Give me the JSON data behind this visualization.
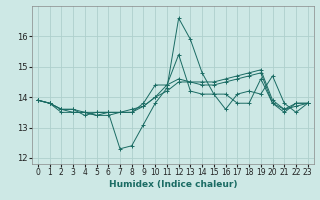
{
  "xlabel": "Humidex (Indice chaleur)",
  "ylabel": "",
  "bg_color": "#cde8e5",
  "grid_color": "#aed0cc",
  "line_color": "#1a6b63",
  "xlim": [
    -0.5,
    23.5
  ],
  "ylim": [
    11.8,
    17.0
  ],
  "yticks": [
    12,
    13,
    14,
    15,
    16
  ],
  "xticks": [
    0,
    1,
    2,
    3,
    4,
    5,
    6,
    7,
    8,
    9,
    10,
    11,
    12,
    13,
    14,
    15,
    16,
    17,
    18,
    19,
    20,
    21,
    22,
    23
  ],
  "series": [
    [
      13.9,
      13.8,
      13.6,
      13.6,
      13.5,
      13.5,
      13.5,
      12.3,
      12.4,
      13.1,
      13.8,
      14.3,
      16.6,
      15.9,
      14.8,
      14.1,
      14.1,
      13.8,
      13.8,
      14.6,
      13.8,
      13.5,
      13.8,
      13.8
    ],
    [
      13.9,
      13.8,
      13.6,
      13.6,
      13.4,
      13.5,
      13.5,
      13.5,
      13.6,
      13.7,
      14.0,
      14.4,
      14.6,
      14.5,
      14.4,
      14.4,
      14.5,
      14.6,
      14.7,
      14.8,
      13.8,
      13.6,
      13.8,
      13.8
    ],
    [
      13.9,
      13.8,
      13.5,
      13.5,
      13.5,
      13.4,
      13.4,
      13.5,
      13.5,
      13.8,
      14.4,
      14.4,
      15.4,
      14.2,
      14.1,
      14.1,
      13.6,
      14.1,
      14.2,
      14.1,
      14.7,
      13.8,
      13.5,
      13.8
    ],
    [
      13.9,
      13.8,
      13.6,
      13.5,
      13.5,
      13.4,
      13.5,
      13.5,
      13.5,
      13.7,
      14.0,
      14.2,
      14.5,
      14.5,
      14.5,
      14.5,
      14.6,
      14.7,
      14.8,
      14.9,
      13.9,
      13.6,
      13.7,
      13.8
    ]
  ],
  "label_fontsize": 6.5,
  "tick_fontsize": 5.5
}
